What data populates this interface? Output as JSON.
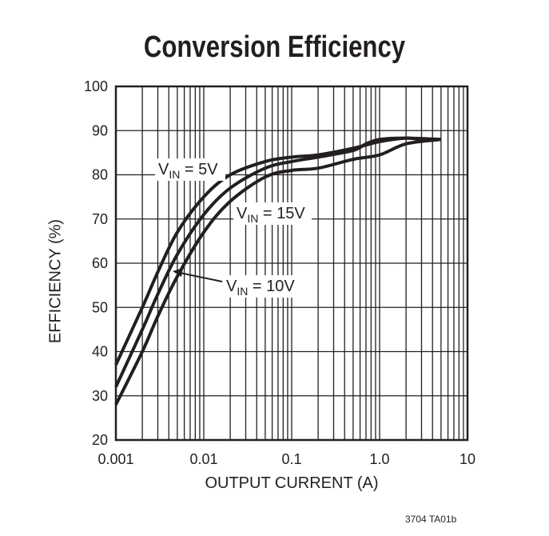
{
  "chart_data": {
    "type": "line",
    "title": "Conversion Efficiency",
    "xlabel": "OUTPUT CURRENT (A)",
    "ylabel": "EFFICIENCY (%)",
    "xscale": "log",
    "xlim": [
      0.001,
      10
    ],
    "ylim": [
      20,
      100
    ],
    "xticks": [
      "0.001",
      "0.01",
      "0.1",
      "1.0",
      "10"
    ],
    "yticks": [
      "20",
      "30",
      "40",
      "50",
      "60",
      "70",
      "80",
      "90",
      "100"
    ],
    "grid": true,
    "line_color": "#231f20",
    "series": [
      {
        "name": "VIN = 5V",
        "label_main": "V",
        "label_sub": "IN",
        "label_rest": " = 5V",
        "x": [
          0.001,
          0.002,
          0.003,
          0.005,
          0.01,
          0.02,
          0.05,
          0.1,
          0.2,
          0.5,
          1,
          2,
          3,
          5
        ],
        "y": [
          37,
          50,
          58,
          67,
          75,
          80,
          83,
          84,
          84.5,
          86,
          87.5,
          88.3,
          88,
          88
        ]
      },
      {
        "name": "VIN = 10V",
        "label_main": "V",
        "label_sub": "IN",
        "label_rest": " = 10V",
        "x": [
          0.001,
          0.002,
          0.003,
          0.005,
          0.01,
          0.02,
          0.05,
          0.1,
          0.2,
          0.5,
          0.7,
          1,
          2,
          5
        ],
        "y": [
          32,
          45,
          53,
          62,
          71,
          77,
          81.5,
          83,
          84,
          85.5,
          87,
          88,
          88.3,
          88
        ]
      },
      {
        "name": "VIN = 15V",
        "label_main": "V",
        "label_sub": "IN",
        "label_rest": " = 15V",
        "x": [
          0.001,
          0.002,
          0.003,
          0.005,
          0.01,
          0.02,
          0.05,
          0.1,
          0.2,
          0.5,
          1,
          2,
          5
        ],
        "y": [
          28,
          40,
          48,
          57,
          67,
          74,
          79.5,
          81,
          81.5,
          83.5,
          84.5,
          87,
          88
        ]
      }
    ]
  },
  "footnote": "3704 TA01b"
}
